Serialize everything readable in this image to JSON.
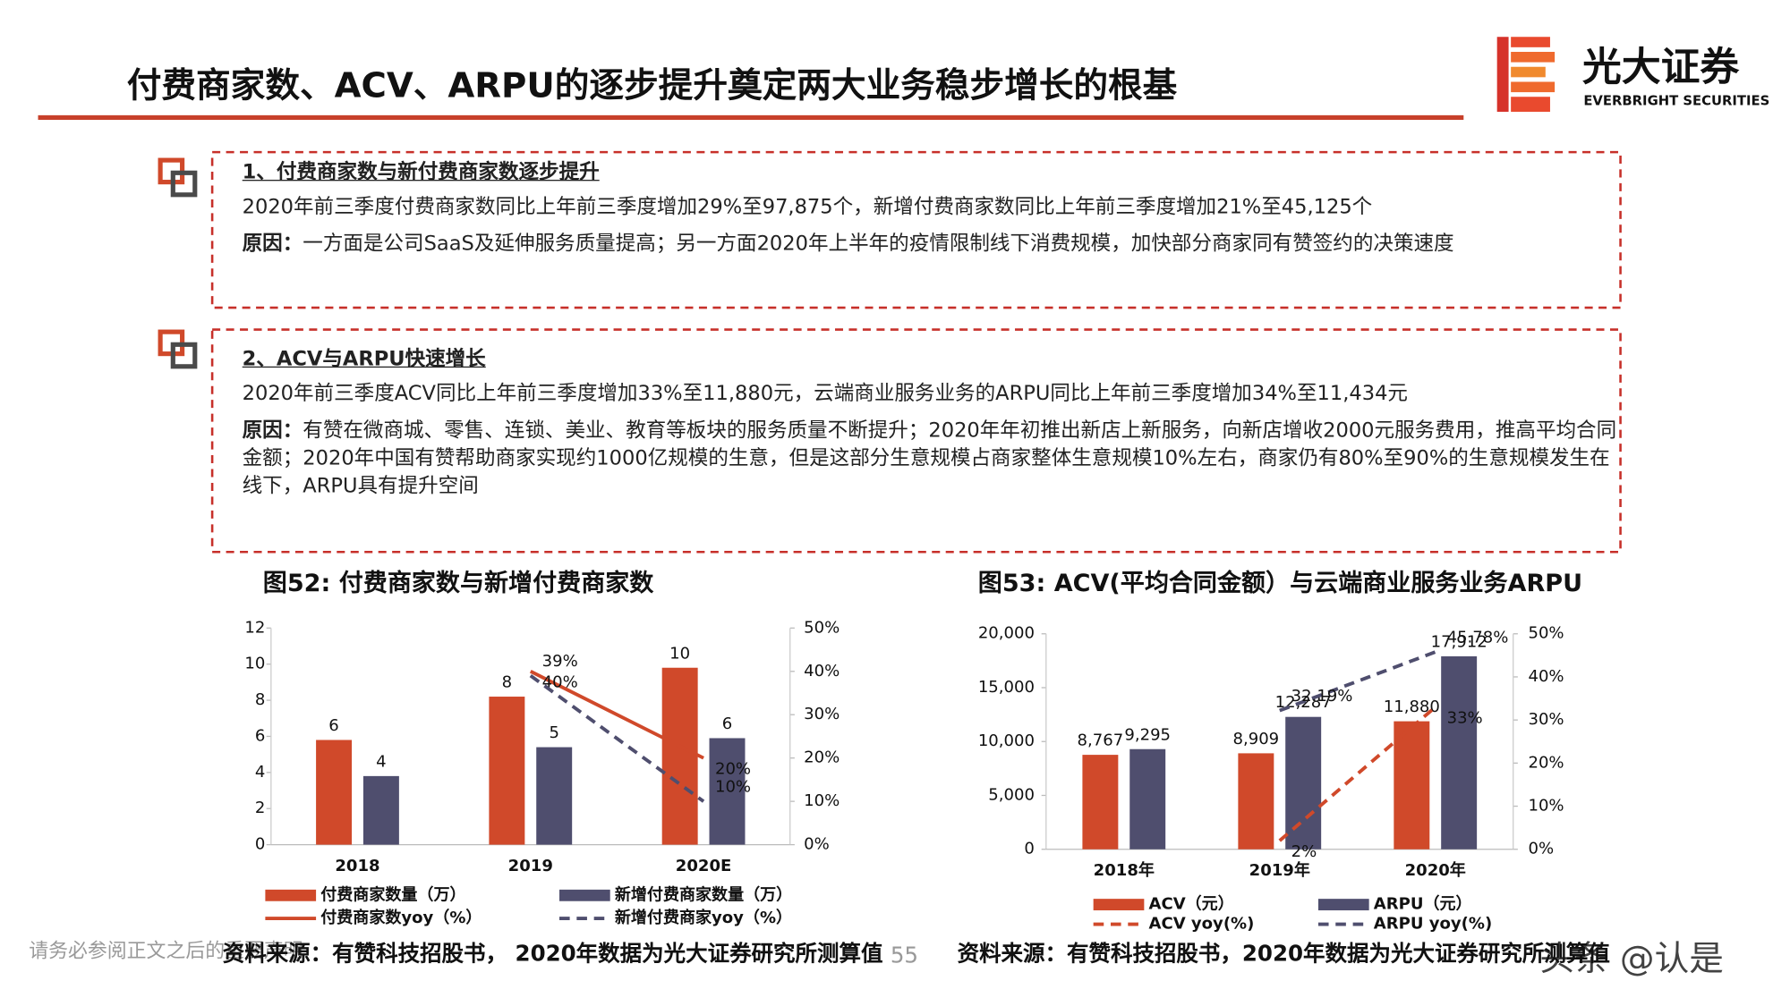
{
  "header": {
    "title": "付费商家数、ACV、ARPU的逐步提升奠定两大业务稳步增长的根基",
    "logo_text": "光大证券",
    "logo_subtext": "EVERBRIGHT SECURITIES"
  },
  "sections": [
    {
      "heading": "1、付费商家数与新付费商家数逐步提升",
      "text": "2020年前三季度付费商家数同比上年前三季度增加29%至97,875个，新增付费商家数同比上年前三季度增加21%至45,125个",
      "reason_label": "原因：",
      "reason": "一方面是公司SaaS及延伸服务质量提高；另一方面2020年上半年的疫情限制线下消费规模，加快部分商家同有赞签约的决策速度"
    },
    {
      "heading": "2、ACV与ARPU快速增长",
      "text": "2020年前三季度ACV同比上年前三季度增加33%至11,880元，云端商业服务业务的ARPU同比上年前三季度增加34%至11,434元",
      "reason_label": "原因：",
      "reason": "有赞在微商城、零售、连锁、美业、教育等板块的服务质量不断提升；2020年年初推出新店上新服务，向新店增收2000元服务费用，推高平均合同金额；2020年中国有赞帮助商家实现约1000亿规模的生意，但是这部分生意规模占商家整体生意规模10%左右，商家仍有80%至90%的生意规模发生在线下，ARPU具有提升空间"
    }
  ],
  "chart_data": [
    {
      "type": "bar",
      "title": "图52: 付费商家数与新增付费商家数",
      "categories": [
        "2018",
        "2019",
        "2020E"
      ],
      "series": [
        {
          "name": "付费商家数量（万）",
          "type": "bar",
          "color": "#d0492a",
          "values": [
            5.8,
            8.2,
            9.8
          ],
          "value_labels": [
            "6",
            "8",
            "10"
          ]
        },
        {
          "name": "新增付费商家数量（万）",
          "type": "bar",
          "color": "#4f4e6e",
          "values": [
            3.8,
            5.4,
            5.9
          ],
          "value_labels": [
            "4",
            "5",
            "6"
          ]
        },
        {
          "name": "付费商家数yoy（%）",
          "type": "line",
          "dash": false,
          "axis": "y2",
          "color": "#d0492a",
          "values": [
            null,
            40,
            20
          ],
          "value_labels": [
            null,
            "40%",
            "20%"
          ]
        },
        {
          "name": "新增付费商家yoy（%）",
          "type": "line",
          "dash": true,
          "axis": "y2",
          "color": "#4f4e6e",
          "values": [
            null,
            39,
            10
          ],
          "value_labels": [
            null,
            "39%",
            "10%"
          ]
        }
      ],
      "ylim": [
        0,
        12
      ],
      "yticks": [
        0,
        2,
        4,
        6,
        8,
        10,
        12
      ],
      "y2lim": [
        0,
        50
      ],
      "y2ticks": [
        {
          "value": 0,
          "label": "0%"
        },
        {
          "value": 10,
          "label": "10%"
        },
        {
          "value": 20,
          "label": "20%"
        },
        {
          "value": 30,
          "label": "30%"
        },
        {
          "value": 40,
          "label": "40%"
        },
        {
          "value": 50,
          "label": "50%"
        }
      ],
      "source": "资料来源：有赞科技招股书， 2020年数据为光大证券研究所测算值"
    },
    {
      "type": "bar",
      "title": "图53: ACV(平均合同金额）与云端商业服务业务ARPU",
      "categories": [
        "2018年",
        "2019年",
        "2020年"
      ],
      "series": [
        {
          "name": "ACV（元）",
          "type": "bar",
          "color": "#d0492a",
          "values": [
            8767,
            8909,
            11880
          ],
          "value_labels": [
            "8,767",
            "8,909",
            "11,880"
          ]
        },
        {
          "name": "ARPU（元）",
          "type": "bar",
          "color": "#4f4e6e",
          "values": [
            9295,
            12287,
            17912
          ],
          "value_labels": [
            "9,295",
            "12,287",
            "17,912"
          ]
        },
        {
          "name": "ACV yoy(%)",
          "type": "line",
          "dash": true,
          "axis": "y2",
          "color": "#d0492a",
          "values": [
            null,
            2,
            33
          ],
          "value_labels": [
            null,
            "2%",
            "33%"
          ]
        },
        {
          "name": "ARPU yoy(%)",
          "type": "line",
          "dash": true,
          "axis": "y2",
          "color": "#4f4e6e",
          "values": [
            null,
            32.19,
            45.78
          ],
          "value_labels": [
            null,
            "32.19%",
            "45.78%"
          ]
        }
      ],
      "ylim": [
        0,
        20000
      ],
      "yticks": [
        0,
        {
          "value": 5000,
          "label": "5,000"
        },
        {
          "value": 10000,
          "label": "10,000"
        },
        {
          "value": 15000,
          "label": "15,000"
        },
        {
          "value": 20000,
          "label": "20,000"
        }
      ],
      "y2lim": [
        0,
        50
      ],
      "y2ticks": [
        {
          "value": 0,
          "label": "0%"
        },
        {
          "value": 10,
          "label": "10%"
        },
        {
          "value": 20,
          "label": "20%"
        },
        {
          "value": 30,
          "label": "30%"
        },
        {
          "value": 40,
          "label": "40%"
        },
        {
          "value": 50,
          "label": "50%"
        }
      ],
      "source": "资料来源：有赞科技招股书，2020年数据为光大证券研究所测算值"
    }
  ],
  "footer": {
    "disclaimer": "请务必参阅正文之后的重要声明",
    "page": "55",
    "watermark": "头条 @认是"
  }
}
